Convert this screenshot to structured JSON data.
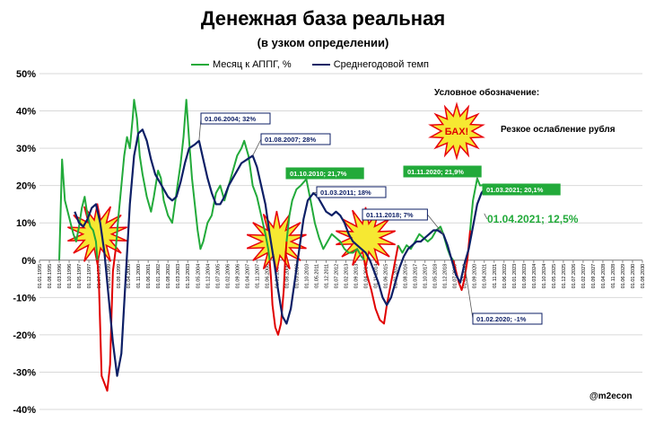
{
  "title": "Денежная база реальная",
  "subtitle": "(в узком определении)",
  "legend_note": "Условное обозначение:",
  "bah_label": "БАХ!",
  "bah_caption": "Резкое ослабление рубля",
  "watermark": "@m2econ",
  "colors": {
    "monthly": "#22aa3a",
    "average": "#0d1f66",
    "crisis_red": "#e00000",
    "burst_fill": "#f5e51c",
    "burst_stroke": "#e8000b"
  },
  "chart_data": {
    "type": "line",
    "title": "Денежная база реальная",
    "subtitle": "(в узком определении)",
    "yunit": "%",
    "ylim": [
      -40,
      50
    ],
    "yticks": [
      "50%",
      "40%",
      "30%",
      "20%",
      "10%",
      "0%",
      "-10%",
      "-20%",
      "-30%",
      "-40%"
    ],
    "yvalues": [
      50,
      40,
      30,
      20,
      10,
      0,
      -10,
      -20,
      -30,
      -40
    ],
    "xlim": [
      "1995-01",
      "2030-08"
    ],
    "xtick_labels": [
      "01.01.1995",
      "01.08.1995",
      "01.03.1996",
      "01.10.1996",
      "01.05.1997",
      "01.12.1997",
      "01.07.1998",
      "01.02.1999",
      "01.09.1999",
      "01.04.2000",
      "01.11.2000",
      "01.06.2001",
      "01.01.2002",
      "01.08.2002",
      "01.03.2003",
      "01.10.2003",
      "01.05.2004",
      "01.12.2004",
      "01.07.2005",
      "01.02.2006",
      "01.09.2006",
      "01.04.2007",
      "01.11.2007",
      "01.06.2008",
      "01.01.2009",
      "01.08.2009",
      "01.03.2010",
      "01.10.2010",
      "01.05.2011",
      "01.12.2011",
      "01.07.2012",
      "01.02.2013",
      "01.09.2013",
      "01.04.2014",
      "01.11.2014",
      "01.06.2015",
      "01.01.2016",
      "01.08.2016",
      "01.03.2017",
      "01.10.2017",
      "01.05.2018",
      "01.12.2018",
      "01.07.2019",
      "01.02.2020",
      "01.09.2020",
      "01.04.2021",
      "01.11.2021",
      "01.06.2022",
      "01.01.2023",
      "01.08.2023",
      "01.03.2024",
      "01.10.2024",
      "01.05.2025",
      "01.12.2025",
      "01.07.2026",
      "01.02.2027",
      "01.09.2027",
      "01.04.2028",
      "01.11.2028",
      "01.06.2029",
      "01.01.2030",
      "01.08.2030"
    ],
    "series": [
      {
        "name": "Месяц к АППГ, %",
        "color": "#22aa3a",
        "points": [
          [
            "1996-03",
            0
          ],
          [
            "1996-05",
            27
          ],
          [
            "1996-07",
            16
          ],
          [
            "1996-09",
            13
          ],
          [
            "1996-11",
            10
          ],
          [
            "1997-01",
            7
          ],
          [
            "1997-03",
            5
          ],
          [
            "1997-05",
            9
          ],
          [
            "1997-07",
            14
          ],
          [
            "1997-09",
            17
          ],
          [
            "1997-11",
            12
          ],
          [
            "1998-01",
            9
          ],
          [
            "1998-03",
            8
          ],
          [
            "1998-05",
            5
          ],
          [
            "1998-06",
            0
          ],
          [
            "1998-07",
            -5
          ],
          [
            "1998-08",
            -18
          ],
          [
            "1998-09",
            -31
          ],
          [
            "1998-11",
            -33
          ],
          [
            "1999-01",
            -35
          ],
          [
            "1999-03",
            -28
          ],
          [
            "1999-04",
            -15
          ],
          [
            "1999-05",
            -3
          ],
          [
            "1999-06",
            0
          ],
          [
            "1999-07",
            3
          ],
          [
            "1999-09",
            12
          ],
          [
            "1999-11",
            20
          ],
          [
            "2000-01",
            28
          ],
          [
            "2000-03",
            33
          ],
          [
            "2000-05",
            30
          ],
          [
            "2000-07",
            38
          ],
          [
            "2000-08",
            43
          ],
          [
            "2000-10",
            38
          ],
          [
            "2000-12",
            28
          ],
          [
            "2001-02",
            23
          ],
          [
            "2001-05",
            17
          ],
          [
            "2001-08",
            13
          ],
          [
            "2001-10",
            17
          ],
          [
            "2002-01",
            24
          ],
          [
            "2002-03",
            22
          ],
          [
            "2002-05",
            16
          ],
          [
            "2002-08",
            12
          ],
          [
            "2002-11",
            10
          ],
          [
            "2003-02",
            18
          ],
          [
            "2003-05",
            26
          ],
          [
            "2003-07",
            33
          ],
          [
            "2003-09",
            43
          ],
          [
            "2003-11",
            32
          ],
          [
            "2004-01",
            22
          ],
          [
            "2004-03",
            15
          ],
          [
            "2004-05",
            8
          ],
          [
            "2004-07",
            3
          ],
          [
            "2004-09",
            5
          ],
          [
            "2004-12",
            10
          ],
          [
            "2005-03",
            12
          ],
          [
            "2005-06",
            18
          ],
          [
            "2005-09",
            20
          ],
          [
            "2005-12",
            16
          ],
          [
            "2006-03",
            20
          ],
          [
            "2006-06",
            24
          ],
          [
            "2006-09",
            28
          ],
          [
            "2006-12",
            30
          ],
          [
            "2007-02",
            32
          ],
          [
            "2007-05",
            28
          ],
          [
            "2007-08",
            20
          ],
          [
            "2007-11",
            17
          ],
          [
            "2008-02",
            12
          ],
          [
            "2008-05",
            7
          ],
          [
            "2008-07",
            3
          ],
          [
            "2008-08",
            0
          ],
          [
            "2008-09",
            -5
          ],
          [
            "2008-10",
            -12
          ],
          [
            "2008-12",
            -18
          ],
          [
            "2009-02",
            -20
          ],
          [
            "2009-04",
            -17
          ],
          [
            "2009-06",
            -8
          ],
          [
            "2009-07",
            0
          ],
          [
            "2009-08",
            5
          ],
          [
            "2009-10",
            12
          ],
          [
            "2009-12",
            16
          ],
          [
            "2010-03",
            19
          ],
          [
            "2010-06",
            20
          ],
          [
            "2010-10",
            21.7
          ],
          [
            "2011-01",
            16
          ],
          [
            "2011-04",
            10
          ],
          [
            "2011-07",
            6
          ],
          [
            "2011-10",
            3
          ],
          [
            "2012-01",
            5
          ],
          [
            "2012-04",
            7
          ],
          [
            "2012-07",
            6
          ],
          [
            "2012-10",
            5
          ],
          [
            "2013-01",
            3
          ],
          [
            "2013-04",
            2
          ],
          [
            "2013-07",
            2
          ],
          [
            "2013-10",
            3
          ],
          [
            "2014-01",
            1
          ],
          [
            "2014-03",
            0
          ],
          [
            "2014-05",
            -4
          ],
          [
            "2014-08",
            -8
          ],
          [
            "2014-11",
            -13
          ],
          [
            "2015-02",
            -16
          ],
          [
            "2015-05",
            -17
          ],
          [
            "2015-07",
            -12
          ],
          [
            "2015-09",
            -8
          ],
          [
            "2015-11",
            -4
          ],
          [
            "2016-01",
            0
          ],
          [
            "2016-03",
            4
          ],
          [
            "2016-06",
            2
          ],
          [
            "2016-09",
            4
          ],
          [
            "2016-12",
            3
          ],
          [
            "2017-03",
            5
          ],
          [
            "2017-06",
            7
          ],
          [
            "2017-09",
            6
          ],
          [
            "2017-12",
            5
          ],
          [
            "2018-03",
            6
          ],
          [
            "2018-06",
            8
          ],
          [
            "2018-09",
            9
          ],
          [
            "2018-11",
            7
          ],
          [
            "2019-02",
            3
          ],
          [
            "2019-04",
            1
          ],
          [
            "2019-06",
            0
          ],
          [
            "2019-08",
            -3
          ],
          [
            "2019-10",
            -6
          ],
          [
            "2019-12",
            -8
          ],
          [
            "2020-02",
            -5
          ],
          [
            "2020-04",
            0
          ],
          [
            "2020-06",
            8
          ],
          [
            "2020-08",
            16
          ],
          [
            "2020-11",
            21.9
          ],
          [
            "2021-01",
            20
          ],
          [
            "2021-03",
            20.1
          ]
        ],
        "crisis_ranges": [
          [
            "1998-06",
            "1999-06"
          ],
          [
            "2008-08",
            "2009-07"
          ],
          [
            "2014-03",
            "2016-01"
          ],
          [
            "2019-06",
            "2020-04"
          ]
        ]
      },
      {
        "name": "Среднегодовой темп",
        "color": "#0d1f66",
        "points": [
          [
            "1997-02",
            13
          ],
          [
            "1997-05",
            10
          ],
          [
            "1997-08",
            9
          ],
          [
            "1997-11",
            11
          ],
          [
            "1998-02",
            14
          ],
          [
            "1998-05",
            15
          ],
          [
            "1998-08",
            10
          ],
          [
            "1998-11",
            2
          ],
          [
            "1999-02",
            -10
          ],
          [
            "1999-05",
            -22
          ],
          [
            "1999-08",
            -31
          ],
          [
            "1999-11",
            -25
          ],
          [
            "2000-02",
            -5
          ],
          [
            "2000-05",
            15
          ],
          [
            "2000-08",
            28
          ],
          [
            "2000-11",
            34
          ],
          [
            "2001-02",
            35
          ],
          [
            "2001-05",
            32
          ],
          [
            "2001-08",
            27
          ],
          [
            "2001-11",
            23
          ],
          [
            "2002-02",
            21
          ],
          [
            "2002-05",
            19
          ],
          [
            "2002-08",
            17
          ],
          [
            "2002-11",
            16
          ],
          [
            "2003-02",
            17
          ],
          [
            "2003-05",
            21
          ],
          [
            "2003-08",
            26
          ],
          [
            "2003-11",
            30
          ],
          [
            "2004-03",
            31
          ],
          [
            "2004-06",
            32
          ],
          [
            "2004-09",
            27
          ],
          [
            "2004-12",
            22
          ],
          [
            "2005-03",
            18
          ],
          [
            "2005-06",
            15
          ],
          [
            "2005-09",
            15
          ],
          [
            "2005-12",
            17
          ],
          [
            "2006-03",
            20
          ],
          [
            "2006-06",
            22
          ],
          [
            "2006-09",
            24
          ],
          [
            "2006-12",
            26
          ],
          [
            "2007-04",
            27
          ],
          [
            "2007-08",
            28
          ],
          [
            "2007-11",
            25
          ],
          [
            "2008-02",
            20
          ],
          [
            "2008-05",
            15
          ],
          [
            "2008-08",
            7
          ],
          [
            "2008-11",
            0
          ],
          [
            "2009-02",
            -8
          ],
          [
            "2009-05",
            -15
          ],
          [
            "2009-08",
            -17
          ],
          [
            "2009-11",
            -13
          ],
          [
            "2010-02",
            -5
          ],
          [
            "2010-05",
            3
          ],
          [
            "2010-08",
            11
          ],
          [
            "2010-11",
            16
          ],
          [
            "2011-03",
            18
          ],
          [
            "2011-06",
            17
          ],
          [
            "2011-09",
            15
          ],
          [
            "2011-12",
            13
          ],
          [
            "2012-04",
            12
          ],
          [
            "2012-07",
            13
          ],
          [
            "2012-10",
            12
          ],
          [
            "2013-01",
            10
          ],
          [
            "2013-04",
            7
          ],
          [
            "2013-07",
            5
          ],
          [
            "2013-10",
            4
          ],
          [
            "2014-01",
            3
          ],
          [
            "2014-04",
            2
          ],
          [
            "2014-07",
            0
          ],
          [
            "2014-10",
            -3
          ],
          [
            "2015-01",
            -6
          ],
          [
            "2015-04",
            -10
          ],
          [
            "2015-07",
            -12
          ],
          [
            "2015-10",
            -10
          ],
          [
            "2016-01",
            -6
          ],
          [
            "2016-04",
            -2
          ],
          [
            "2016-07",
            1
          ],
          [
            "2016-10",
            3
          ],
          [
            "2017-01",
            4
          ],
          [
            "2017-04",
            5
          ],
          [
            "2017-07",
            5
          ],
          [
            "2017-10",
            6
          ],
          [
            "2018-01",
            7
          ],
          [
            "2018-04",
            8
          ],
          [
            "2018-07",
            8
          ],
          [
            "2018-11",
            7
          ],
          [
            "2019-02",
            4
          ],
          [
            "2019-05",
            0
          ],
          [
            "2019-08",
            -4
          ],
          [
            "2019-11",
            -6
          ],
          [
            "2020-02",
            -1
          ],
          [
            "2020-05",
            3
          ],
          [
            "2020-08",
            9
          ],
          [
            "2020-11",
            15
          ],
          [
            "2021-02",
            18
          ],
          [
            "2021-04",
            19
          ]
        ]
      }
    ],
    "annotations": [
      {
        "label": "01.06.2004; 32%",
        "series": "Среднегодовой темп",
        "x": "2004-06",
        "y": 32
      },
      {
        "label": "01.08.2007; 28%",
        "series": "Среднегодовой темп",
        "x": "2007-08",
        "y": 28
      },
      {
        "label": "01.10.2010; 21,7%",
        "series": "Месяц к АППГ, %",
        "x": "2010-10",
        "y": 21.7
      },
      {
        "label": "01.03.2011; 18%",
        "series": "Среднегодовой темп",
        "x": "2011-03",
        "y": 18
      },
      {
        "label": "01.11.2018; 7%",
        "series": "Среднегодовой темп",
        "x": "2018-11",
        "y": 7
      },
      {
        "label": "01.11.2020; 21,9%",
        "series": "Месяц к АППГ, %",
        "x": "2020-11",
        "y": 21.9
      },
      {
        "label": "01.03.2021; 20,1%",
        "series": "Месяц к АППГ, %",
        "x": "2021-03",
        "y": 20.1
      },
      {
        "label": "01.02.2020; -1%",
        "series": "Среднегодовой темп",
        "x": "2020-02",
        "y": -1
      },
      {
        "label": "01.04.2021; 12,5%",
        "series": "Месяц к АППГ, %",
        "x": "2021-04",
        "y": 12.5
      }
    ],
    "crisis_markers": [
      {
        "x": "1998-06",
        "y": 7
      },
      {
        "x": "2009-01",
        "y": 5
      },
      {
        "x": "2014-04",
        "y": 6
      },
      {
        "x": "2021-06",
        "y": 35,
        "legend": true
      }
    ],
    "grid": true
  }
}
